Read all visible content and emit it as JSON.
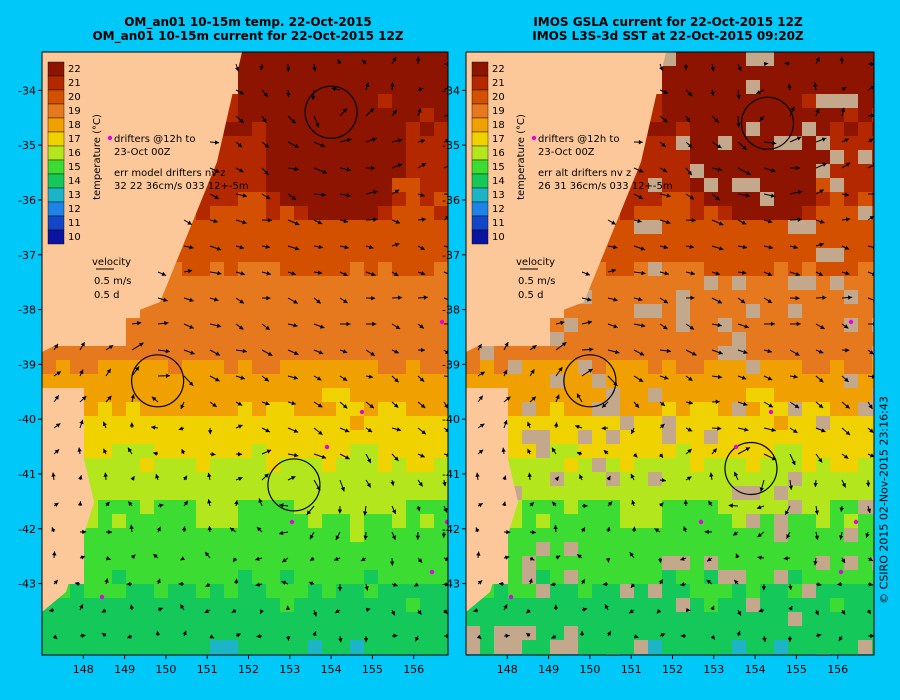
{
  "panels": [
    {
      "id": "left",
      "title_line1": "OM_an01 10-15m temp. 22-Oct-2015",
      "title_line2": "OM_an01 10-15m current for 22-Oct-2015 12Z",
      "drifter_note_1": "drifters @12h to",
      "drifter_note_2": "23-Oct 00Z",
      "err_note_1": "err model drifters nv z",
      "err_note_2": "32 22 36cm/s 033 12+-5m",
      "velocity_label": "velocity",
      "velocity_scale": "0.5 m/s",
      "velocity_time": "0.5 d",
      "sst_gaps": false,
      "eddies": [
        {
          "lon": 154.0,
          "lat": -34.4,
          "dir": "ccw"
        },
        {
          "lon": 149.8,
          "lat": -39.3,
          "dir": "cw"
        },
        {
          "lon": 153.1,
          "lat": -41.2,
          "dir": "cw"
        }
      ]
    },
    {
      "id": "right",
      "title_line1": "IMOS GSLA current for 22-Oct-2015 12Z",
      "title_line2": "IMOS L3S-3d SST at 22-Oct-2015 09:20Z",
      "drifter_note_1": "drifters @12h to",
      "drifter_note_2": "23-Oct 00Z",
      "err_note_1": "err alt drifters nv z",
      "err_note_2": "26 31 36cm/s 033 12+-5m",
      "velocity_label": "velocity",
      "velocity_scale": "0.5 m/s",
      "velocity_time": "0.5 d",
      "sst_gaps": true,
      "eddies": [
        {
          "lon": 154.3,
          "lat": -34.6,
          "dir": "ccw"
        },
        {
          "lon": 150.0,
          "lat": -39.3,
          "dir": "cw"
        },
        {
          "lon": 153.9,
          "lat": -40.9,
          "dir": "cw"
        }
      ]
    }
  ],
  "colorbar": {
    "label": "temperature (°C)",
    "ticks": [
      "22",
      "21",
      "20",
      "19",
      "18",
      "17",
      "16",
      "15",
      "14",
      "13",
      "12",
      "11",
      "10"
    ],
    "colors": [
      "#8c1400",
      "#b42800",
      "#d25000",
      "#e6781e",
      "#f0a000",
      "#f0d200",
      "#b4e61e",
      "#3cdc32",
      "#14c85a",
      "#1eb4c8",
      "#1e82e6",
      "#1446c8",
      "#0a14a0"
    ]
  },
  "axes": {
    "lon_ticks": [
      "148",
      "149",
      "150",
      "151",
      "152",
      "153",
      "154",
      "155",
      "156"
    ],
    "lat_ticks": [
      "-34",
      "-35",
      "-36",
      "-37",
      "-38",
      "-39",
      "-40",
      "-41",
      "-42",
      "-43"
    ]
  },
  "colors": {
    "background": "#00c8f8",
    "land": "#fcc89a",
    "data_gap": "#c4a88c",
    "drifter": "#e600e6",
    "arrow": "#000000"
  },
  "credit": "© CSIRO 2015  02-Nov-2015 23:16:43"
}
